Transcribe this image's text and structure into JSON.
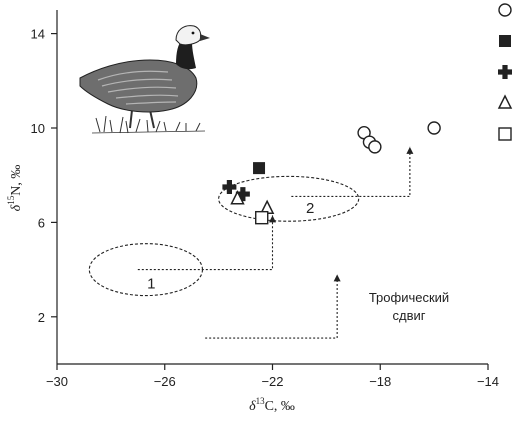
{
  "chart_data": {
    "type": "scatter",
    "xlabel": {
      "symbol": "δ",
      "sup": "13",
      "rest": "C, ‰"
    },
    "ylabel": {
      "symbol": "δ",
      "sup": "15",
      "rest": "N, ‰"
    },
    "xlim": [
      -30,
      -14
    ],
    "ylim": [
      0,
      15
    ],
    "xticks": [
      "−30",
      "−26",
      "−22",
      "−18",
      "−14"
    ],
    "xtick_values": [
      -30,
      -26,
      -22,
      -18,
      -14
    ],
    "yticks": [
      "2",
      "6",
      "10",
      "14"
    ],
    "ytick_values": [
      2,
      6,
      10,
      14
    ],
    "series": [
      {
        "marker": "circle-open",
        "points": [
          [
            -18.6,
            9.8
          ],
          [
            -18.4,
            9.4
          ],
          [
            -18.2,
            9.2
          ],
          [
            -16.0,
            10.0
          ]
        ]
      },
      {
        "marker": "square-filled",
        "points": [
          [
            -22.5,
            8.3
          ]
        ]
      },
      {
        "marker": "plus-filled",
        "points": [
          [
            -23.6,
            7.5
          ],
          [
            -23.1,
            7.2
          ]
        ]
      },
      {
        "marker": "triangle-open",
        "points": [
          [
            -23.3,
            7.0
          ],
          [
            -22.2,
            6.6
          ]
        ]
      },
      {
        "marker": "square-open",
        "points": [
          [
            -22.4,
            6.2
          ]
        ]
      }
    ],
    "regions": [
      {
        "label": "1",
        "cx": -26.7,
        "cy": 4.0,
        "rx": 2.1,
        "ry": 1.1
      },
      {
        "label": "2",
        "cx": -21.4,
        "cy": 7.0,
        "rx": 2.6,
        "ry": 0.95
      }
    ],
    "annotation": {
      "lines": [
        "Трофический",
        "сдвиг"
      ],
      "x": -19.7,
      "y": 2.2
    },
    "grid": false,
    "legend": "top-right"
  },
  "colors": {
    "ink": "#222222",
    "background": "#ffffff"
  },
  "illustration": {
    "icon": "goose-illustration"
  }
}
